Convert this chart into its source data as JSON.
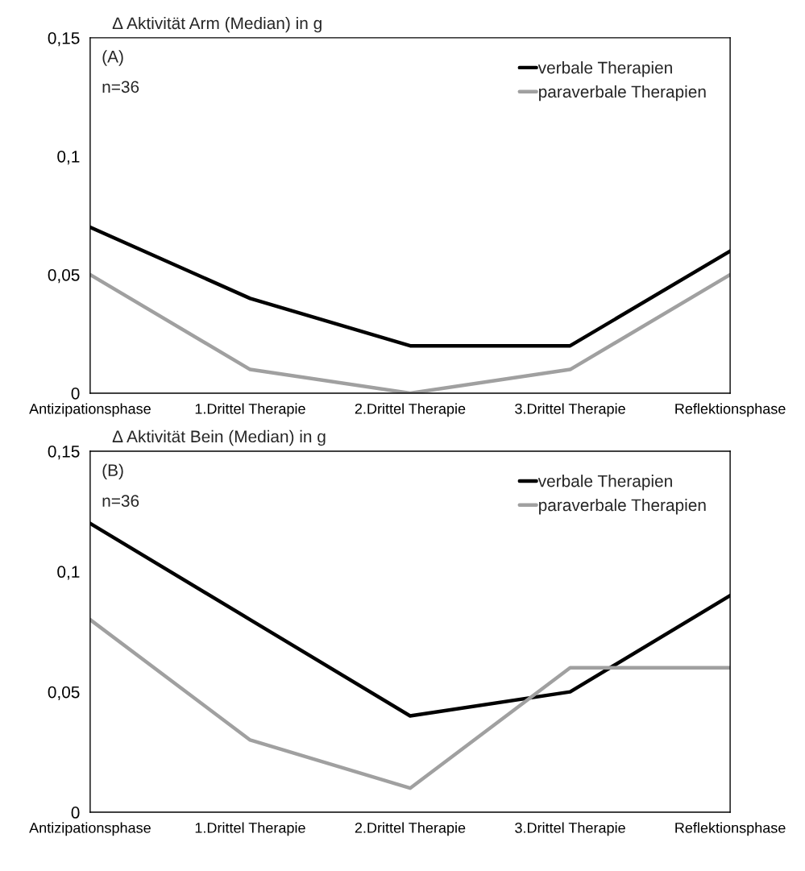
{
  "chart_data": [
    {
      "type": "line",
      "title": "∆ Aktivität Arm (Median) in g",
      "categories": [
        "Antizipationsphase",
        "1.Drittel Therapie",
        "2.Drittel Therapie",
        "3.Drittel Therapie",
        "Reflektionsphase"
      ],
      "series": [
        {
          "name": "verbale Therapien",
          "color": "#000000",
          "values": [
            0.07,
            0.04,
            0.02,
            0.02,
            0.06
          ]
        },
        {
          "name": "paraverbale Therapien",
          "color": "#a0a0a0",
          "values": [
            0.05,
            0.01,
            0.0,
            0.01,
            0.05
          ]
        }
      ],
      "ylim": [
        0,
        0.15
      ],
      "yticks": [
        0,
        {
          "value": 0.05,
          "label": "0,05"
        },
        {
          "value": 0.1,
          "label": "0,1"
        },
        {
          "value": 0.15,
          "label": "0,15"
        }
      ],
      "annotations": [
        "(A)",
        "n=36"
      ],
      "legend": "top right",
      "grid": false,
      "marker": "none",
      "line_style": "solid"
    },
    {
      "type": "line",
      "title": "∆ Aktivität Bein (Median) in g",
      "categories": [
        "Antizipationsphase",
        "1.Drittel Therapie",
        "2.Drittel Therapie",
        "3.Drittel Therapie",
        "Reflektionsphase"
      ],
      "series": [
        {
          "name": "verbale Therapien",
          "color": "#000000",
          "values": [
            0.12,
            0.08,
            0.04,
            0.05,
            0.09
          ]
        },
        {
          "name": "paraverbale Therapien",
          "color": "#a0a0a0",
          "values": [
            0.08,
            0.03,
            0.01,
            0.06,
            0.06
          ]
        }
      ],
      "ylim": [
        0,
        0.15
      ],
      "yticks": [
        0,
        {
          "value": 0.05,
          "label": "0,05"
        },
        {
          "value": 0.1,
          "label": "0,1"
        },
        {
          "value": 0.15,
          "label": "0,15"
        }
      ],
      "annotations": [
        "(B)",
        "n=36"
      ],
      "legend": "top right",
      "grid": false,
      "marker": "none",
      "line_style": "solid"
    }
  ]
}
